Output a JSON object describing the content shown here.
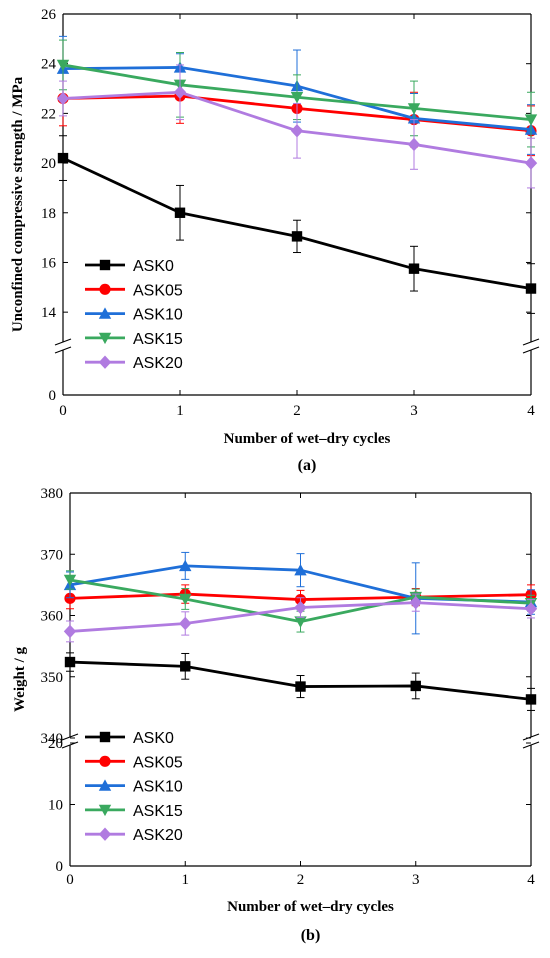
{
  "chart_data": [
    {
      "type": "line",
      "panel_label": "(a)",
      "xlabel": "Number of wet–dry cycles",
      "ylabel": "Unconfined compressive strength / MPa",
      "x": [
        0,
        1,
        2,
        3,
        4
      ],
      "xlim": [
        0,
        4
      ],
      "ylim_upper": [
        13,
        26
      ],
      "ylim_lower": [
        0,
        0
      ],
      "axis_break": true,
      "yticks_upper": [
        14,
        16,
        18,
        20,
        22,
        24,
        26
      ],
      "yticks_lower": [
        0
      ],
      "legend_position": "bottom-left",
      "series": [
        {
          "name": "ASK0",
          "color": "#000000",
          "marker": "square",
          "values": [
            20.2,
            18.0,
            17.05,
            15.75,
            14.95
          ],
          "errors": [
            0.9,
            1.1,
            0.65,
            0.9,
            1.0
          ]
        },
        {
          "name": "ASK05",
          "color": "#ff0000",
          "marker": "circle",
          "values": [
            22.6,
            22.7,
            22.2,
            21.75,
            21.3
          ],
          "errors": [
            1.1,
            1.1,
            0.9,
            1.1,
            1.0
          ]
        },
        {
          "name": "ASK10",
          "color": "#1f6fd8",
          "marker": "triangle-up",
          "values": [
            23.8,
            23.85,
            23.1,
            21.8,
            21.35
          ],
          "errors": [
            1.3,
            0.55,
            1.45,
            1.0,
            1.0
          ]
        },
        {
          "name": "ASK15",
          "color": "#3aa95f",
          "marker": "triangle-down",
          "values": [
            23.95,
            23.15,
            22.65,
            22.2,
            21.75
          ],
          "errors": [
            1.0,
            1.3,
            0.9,
            1.1,
            1.1
          ]
        },
        {
          "name": "ASK20",
          "color": "#b07be0",
          "marker": "diamond",
          "values": [
            22.6,
            22.85,
            21.3,
            20.75,
            20.0
          ],
          "errors": [
            0.7,
            1.1,
            1.1,
            1.0,
            1.0
          ]
        }
      ]
    },
    {
      "type": "line",
      "panel_label": "(b)",
      "xlabel": "Number of wet–dry cycles",
      "ylabel": "Weight / g",
      "x": [
        0,
        1,
        2,
        3,
        4
      ],
      "xlim": [
        0,
        4
      ],
      "ylim_upper": [
        340,
        380
      ],
      "ylim_lower": [
        0,
        20
      ],
      "axis_break": true,
      "yticks_upper": [
        340,
        350,
        360,
        370,
        380
      ],
      "yticks_lower": [
        0,
        10,
        20
      ],
      "legend_position": "bottom-left",
      "series": [
        {
          "name": "ASK0",
          "color": "#000000",
          "marker": "square",
          "values": [
            352.4,
            351.7,
            348.4,
            348.5,
            346.3
          ],
          "errors": [
            1.5,
            2.1,
            1.8,
            2.1,
            1.8
          ]
        },
        {
          "name": "ASK05",
          "color": "#ff0000",
          "marker": "circle",
          "values": [
            362.8,
            363.5,
            362.6,
            363.0,
            363.4
          ],
          "errors": [
            1.7,
            1.5,
            1.5,
            1.4,
            1.6
          ]
        },
        {
          "name": "ASK10",
          "color": "#1f6fd8",
          "marker": "triangle-up",
          "values": [
            365.0,
            368.1,
            367.4,
            362.8,
            362.2
          ],
          "errors": [
            2.1,
            2.2,
            2.7,
            5.8,
            2.0
          ]
        },
        {
          "name": "ASK15",
          "color": "#3aa95f",
          "marker": "triangle-down",
          "values": [
            365.8,
            362.7,
            359.0,
            363.0,
            362.0
          ],
          "errors": [
            1.5,
            1.7,
            1.7,
            1.3,
            1.3
          ]
        },
        {
          "name": "ASK20",
          "color": "#b07be0",
          "marker": "diamond",
          "values": [
            357.4,
            358.7,
            361.3,
            362.1,
            361.1
          ],
          "errors": [
            1.7,
            1.9,
            1.6,
            1.4,
            1.5
          ]
        }
      ]
    }
  ]
}
